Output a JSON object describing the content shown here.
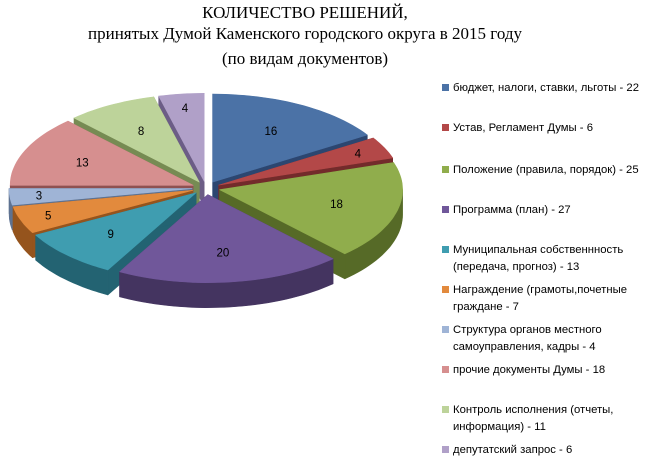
{
  "chart_data": {
    "type": "pie",
    "title": "КОЛИЧЕСТВО РЕШЕНИЙ,",
    "subtitle": "принятых Думой Каменского городского округа в 2015  году",
    "subtitle2": "(по видам документов)",
    "slices": [
      {
        "name": "бюджет,  налоги, ставки, льготы - 22",
        "value": 16,
        "color": "#4b72a6",
        "side": "#2c4670"
      },
      {
        "name": "Устав, Регламент Думы - 6",
        "value": 4,
        "color": "#b34848",
        "side": "#732b2b"
      },
      {
        "name": "Положение  (правила, порядок) - 25",
        "value": 18,
        "color": "#90ad4c",
        "side": "#566a27"
      },
      {
        "name": "Программа (план) - 27",
        "value": 20,
        "color": "#70579a",
        "side": "#443460"
      },
      {
        "name": "Муниципальная собственнность (передача, прогноз) - 13",
        "value": 9,
        "color": "#3f9db0",
        "side": "#236372"
      },
      {
        "name": "Награждение (грамоты,почетные граждане - 7",
        "value": 5,
        "color": "#e28a3d",
        "side": "#95541d"
      },
      {
        "name": "Структура органов местного самоуправления, кадры - 4",
        "value": 3,
        "color": "#9fb4d6",
        "side": "#5e7291"
      },
      {
        "name": "прочие документы  Думы - 18",
        "value": 13,
        "color": "#d68f8f",
        "side": "#8f5151"
      },
      {
        "name": "Контроль исполнения (отчеты, информация) - 11",
        "value": 8,
        "color": "#bdd39a",
        "side": "#768b53"
      },
      {
        "name": "депутатский запрос - 6",
        "value": 4,
        "color": "#b0a0c8",
        "side": "#6c5d86"
      }
    ]
  }
}
